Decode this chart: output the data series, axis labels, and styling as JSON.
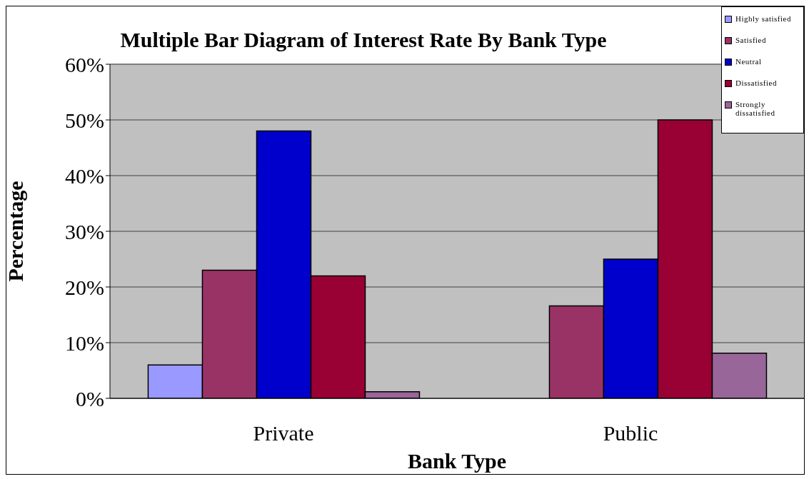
{
  "chart_data": {
    "type": "bar",
    "title": "Multiple Bar Diagram of Interest Rate By Bank Type",
    "xlabel": "Bank Type",
    "ylabel": "Percentage",
    "categories": [
      "Private",
      "Public"
    ],
    "series": [
      {
        "name": "Highly satisfied",
        "color": "#9999ff",
        "values": [
          6,
          0
        ]
      },
      {
        "name": "Satisfied",
        "color": "#993366",
        "values": [
          23,
          16.6
        ]
      },
      {
        "name": "Neutral",
        "color": "#0000cc",
        "values": [
          48,
          25
        ]
      },
      {
        "name": "Dissatisfied",
        "color": "#990033",
        "values": [
          22,
          50
        ]
      },
      {
        "name": "Strongly dissatisfied",
        "color": "#996699",
        "values": [
          1.2,
          8.1
        ]
      }
    ],
    "ylim": [
      0,
      60
    ],
    "yticks": [
      {
        "value": 0,
        "label": "0%"
      },
      {
        "value": 10,
        "label": "10%"
      },
      {
        "value": 20,
        "label": "20%"
      },
      {
        "value": 30,
        "label": "30%"
      },
      {
        "value": 40,
        "label": "40%"
      },
      {
        "value": 50,
        "label": "50%"
      },
      {
        "value": 60,
        "label": "60%"
      }
    ],
    "grid": "y",
    "legend": "top right"
  }
}
